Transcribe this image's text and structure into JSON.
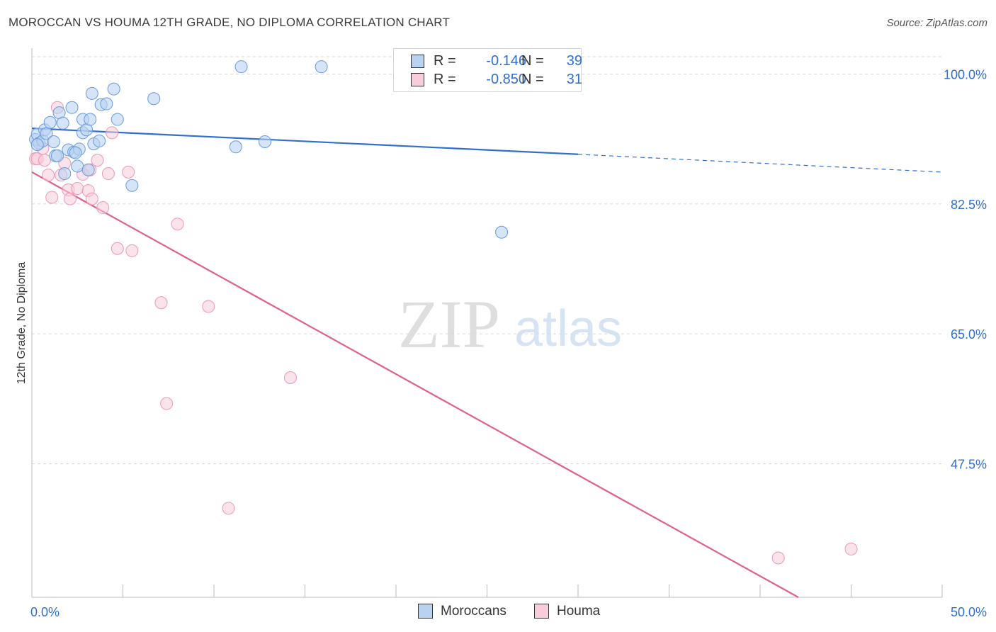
{
  "title": "MOROCCAN VS HOUMA 12TH GRADE, NO DIPLOMA CORRELATION CHART",
  "source": "Source: ZipAtlas.com",
  "watermark": {
    "zip": "ZIP",
    "atlas": "atlas"
  },
  "legend": {
    "r_label": "R =",
    "n_label": "N =",
    "rows": [
      {
        "name": "Moroccans",
        "r": "-0.146",
        "n": "39"
      },
      {
        "name": "Houma",
        "r": "-0.850",
        "n": "31"
      }
    ]
  },
  "colors": {
    "blue": "#2f6fd0",
    "blue_fill": "#b9d2f2",
    "blue_stroke": "#6a9bdc",
    "pink": "#e0608c",
    "pink_fill": "#f8ccda",
    "pink_stroke": "#ec98b4",
    "grid": "#d8d8d8",
    "tick_label": "#2f6fd0"
  },
  "chart_data": {
    "type": "scatter",
    "title": "MOROCCAN VS HOUMA 12TH GRADE, NO DIPLOMA CORRELATION CHART",
    "xlabel": "",
    "ylabel": "12th Grade, No Diploma",
    "xlim": [
      0,
      50
    ],
    "ylim": [
      29.5,
      103.5
    ],
    "x_tick_labels": [
      {
        "value": 0,
        "label": "0.0%"
      },
      {
        "value": 50,
        "label": "50.0%"
      }
    ],
    "x_minor_ticks": [
      5,
      10,
      15,
      20,
      25,
      30,
      35,
      40,
      45,
      50
    ],
    "y_ticks": [
      {
        "value": 100,
        "label": "100.0%"
      },
      {
        "value": 82.5,
        "label": "82.5%"
      },
      {
        "value": 65,
        "label": "65.0%"
      },
      {
        "value": 47.5,
        "label": "47.5%"
      }
    ],
    "grid": true,
    "legend_position": "top-center",
    "series": [
      {
        "name": "Moroccans",
        "color": "#2f6fd0",
        "trend": {
          "x0": 0,
          "y0": 92.7,
          "x1": 30,
          "y1": 89.2,
          "dash_to_x": 50,
          "dash_to_y": 86.8
        },
        "points": [
          [
            0.2,
            91.2
          ],
          [
            0.3,
            91.9
          ],
          [
            0.4,
            90.7
          ],
          [
            0.6,
            91.0
          ],
          [
            0.7,
            92.5
          ],
          [
            0.8,
            92.0
          ],
          [
            1.0,
            93.5
          ],
          [
            1.2,
            90.9
          ],
          [
            1.3,
            89.0
          ],
          [
            1.5,
            94.8
          ],
          [
            1.7,
            93.4
          ],
          [
            1.8,
            86.6
          ],
          [
            2.0,
            89.8
          ],
          [
            2.2,
            95.5
          ],
          [
            2.3,
            89.5
          ],
          [
            2.5,
            87.6
          ],
          [
            2.6,
            89.9
          ],
          [
            2.8,
            92.1
          ],
          [
            2.8,
            93.9
          ],
          [
            3.0,
            92.5
          ],
          [
            3.1,
            87.1
          ],
          [
            3.2,
            93.9
          ],
          [
            3.3,
            97.4
          ],
          [
            3.4,
            90.6
          ],
          [
            3.7,
            91.0
          ],
          [
            3.8,
            95.9
          ],
          [
            4.1,
            96.0
          ],
          [
            4.5,
            98.0
          ],
          [
            4.7,
            93.9
          ],
          [
            5.5,
            85.0
          ],
          [
            6.7,
            96.7
          ],
          [
            11.2,
            90.2
          ],
          [
            11.5,
            101.0
          ],
          [
            12.8,
            90.9
          ],
          [
            15.9,
            101.0
          ],
          [
            25.8,
            78.7
          ],
          [
            0.3,
            90.5
          ],
          [
            2.4,
            89.4
          ],
          [
            1.4,
            89.0
          ]
        ]
      },
      {
        "name": "Houma",
        "color": "#e0608c",
        "trend": {
          "x0": 0,
          "y0": 86.8,
          "x1": 42.1,
          "y1": 29.5
        },
        "points": [
          [
            0.2,
            88.6
          ],
          [
            0.3,
            88.6
          ],
          [
            0.6,
            90.0
          ],
          [
            0.7,
            88.4
          ],
          [
            0.9,
            86.4
          ],
          [
            1.1,
            83.4
          ],
          [
            1.4,
            95.5
          ],
          [
            1.6,
            86.4
          ],
          [
            1.8,
            88.0
          ],
          [
            2.0,
            84.4
          ],
          [
            2.1,
            83.2
          ],
          [
            2.5,
            84.6
          ],
          [
            2.8,
            86.5
          ],
          [
            3.1,
            84.3
          ],
          [
            3.2,
            87.1
          ],
          [
            3.3,
            83.2
          ],
          [
            3.6,
            88.4
          ],
          [
            3.9,
            82.0
          ],
          [
            4.2,
            86.6
          ],
          [
            4.4,
            92.1
          ],
          [
            4.7,
            76.5
          ],
          [
            5.3,
            86.8
          ],
          [
            5.5,
            76.2
          ],
          [
            7.1,
            69.2
          ],
          [
            7.4,
            55.6
          ],
          [
            8.0,
            79.8
          ],
          [
            9.7,
            68.7
          ],
          [
            10.8,
            41.5
          ],
          [
            14.2,
            59.1
          ],
          [
            41.0,
            34.8
          ],
          [
            45.0,
            36.0
          ]
        ]
      }
    ]
  }
}
